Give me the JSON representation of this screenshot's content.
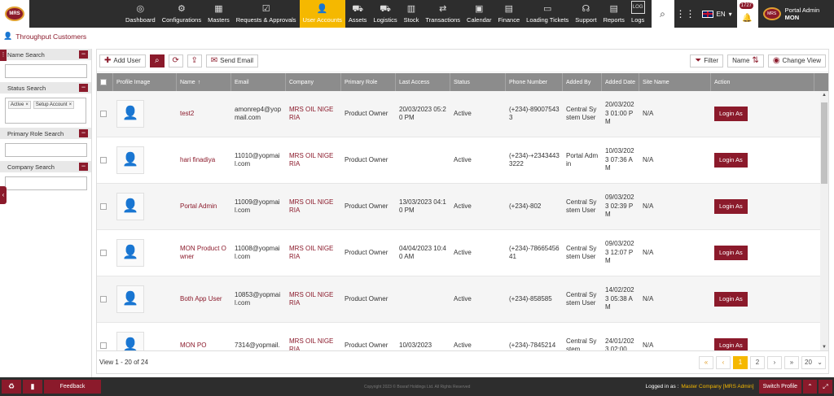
{
  "brand": {
    "logo_text": "MRS"
  },
  "nav": [
    {
      "label": "Dashboard",
      "icon": "dashboard-icon",
      "glyph": "◎"
    },
    {
      "label": "Configurations",
      "icon": "gear-icon",
      "glyph": "⚙"
    },
    {
      "label": "Masters",
      "icon": "grid-icon",
      "glyph": "▦"
    },
    {
      "label": "Requests & Approvals",
      "icon": "clipboard-icon",
      "glyph": "☑"
    },
    {
      "label": "User Accounts",
      "icon": "user-icon",
      "glyph": "👤"
    },
    {
      "label": "Assets",
      "icon": "assets-icon",
      "glyph": "⛟"
    },
    {
      "label": "Logistics",
      "icon": "truck-icon",
      "glyph": "⛟"
    },
    {
      "label": "Stock",
      "icon": "stock-icon",
      "glyph": "▥"
    },
    {
      "label": "Transactions",
      "icon": "transactions-icon",
      "glyph": "⇄"
    },
    {
      "label": "Calendar",
      "icon": "calendar-icon",
      "glyph": "▣"
    },
    {
      "label": "Finance",
      "icon": "finance-icon",
      "glyph": "▤"
    },
    {
      "label": "Loading Tickets",
      "icon": "ticket-icon",
      "glyph": "▭"
    },
    {
      "label": "Support",
      "icon": "headset-icon",
      "glyph": "☊"
    },
    {
      "label": "Reports",
      "icon": "reports-icon",
      "glyph": "▤"
    },
    {
      "label": "Logs",
      "icon": "logs-icon",
      "glyph": "LOG"
    }
  ],
  "header_right": {
    "language": "EN",
    "notifications": "1727",
    "user_name": "Portal Admin",
    "user_org": "MON"
  },
  "breadcrumb": "Throughput Customers",
  "filters": {
    "name_search": {
      "label": "Name Search",
      "value": ""
    },
    "status_search": {
      "label": "Status Search",
      "tags": [
        "Active",
        "Setup Account"
      ]
    },
    "primary_role_search": {
      "label": "Primary Role Search",
      "value": ""
    },
    "company_search": {
      "label": "Company Search",
      "value": ""
    }
  },
  "toolbar": {
    "add_user": "Add User",
    "send_email": "Send Email",
    "filter": "Filter",
    "sort_name": "Name",
    "change_view": "Change View"
  },
  "columns": [
    "Profile Image",
    "Name",
    "Email",
    "Company",
    "Primary Role",
    "Last Access",
    "Status",
    "Phone Number",
    "Added By",
    "Added Date",
    "Site Name",
    "Action"
  ],
  "sort_indicator": "↑",
  "rows": [
    {
      "name": "test2",
      "email": "amonrep4@yopmail.com",
      "company": "MRS OIL NIGERIA",
      "role": "Product Owner",
      "last_access": "20/03/2023 05:20 PM",
      "status": "Active",
      "phone": "(+234)-890075433",
      "added_by": "Central System User",
      "added_date": "20/03/2023 01:00 PM",
      "site": "N/A",
      "action": "Login As"
    },
    {
      "name": "hari finadiya",
      "email": "11010@yopmail.com",
      "company": "MRS OIL NIGERIA",
      "role": "Product Owner",
      "last_access": "",
      "status": "Active",
      "phone": "(+234)-+23434433222",
      "added_by": "Portal Admin",
      "added_date": "10/03/2023 07:36 AM",
      "site": "N/A",
      "action": "Login As"
    },
    {
      "name": "Portal Admin",
      "email": "11009@yopmail.com",
      "company": "MRS OIL NIGERIA",
      "role": "Product Owner",
      "last_access": "13/03/2023 04:10 PM",
      "status": "Active",
      "phone": "(+234)-802",
      "added_by": "Central System User",
      "added_date": "09/03/2023 02:39 PM",
      "site": "N/A",
      "action": "Login As"
    },
    {
      "name": "MON Product Owner",
      "email": "11008@yopmail.com",
      "company": "MRS OIL NIGERIA",
      "role": "Product Owner",
      "last_access": "04/04/2023 10:40 AM",
      "status": "Active",
      "phone": "(+234)-7866545641",
      "added_by": "Central System User",
      "added_date": "09/03/2023 12:07 PM",
      "site": "N/A",
      "action": "Login As"
    },
    {
      "name": "Both App User",
      "email": "10853@yopmail.com",
      "company": "MRS OIL NIGERIA",
      "role": "Product Owner",
      "last_access": "",
      "status": "Active",
      "phone": "(+234)-858585",
      "added_by": "Central System User",
      "added_date": "14/02/2023 05:38 AM",
      "site": "N/A",
      "action": "Login As"
    },
    {
      "name": "MON PO",
      "email": "7314@yopmail.",
      "company": "MRS OIL NIGERIA",
      "role": "Product Owner",
      "last_access": "10/03/2023",
      "status": "Active",
      "phone": "(+234)-7845214",
      "added_by": "Central System",
      "added_date": "24/01/2023 02:00",
      "site": "N/A",
      "action": "Login As"
    }
  ],
  "footer": {
    "view_text": "View 1 - 20 of 24",
    "pages": [
      "1",
      "2"
    ],
    "current_page": "1",
    "page_size": "20"
  },
  "bottombar": {
    "feedback": "Feedback",
    "copyright": "Copyright 2023 © Bosraf Holdings Ltd. All Rights Reserved",
    "logged_in_label": "Logged in as :",
    "logged_in_value": "Master Company [MRS Admin]",
    "switch_profile": "Switch Profile"
  }
}
